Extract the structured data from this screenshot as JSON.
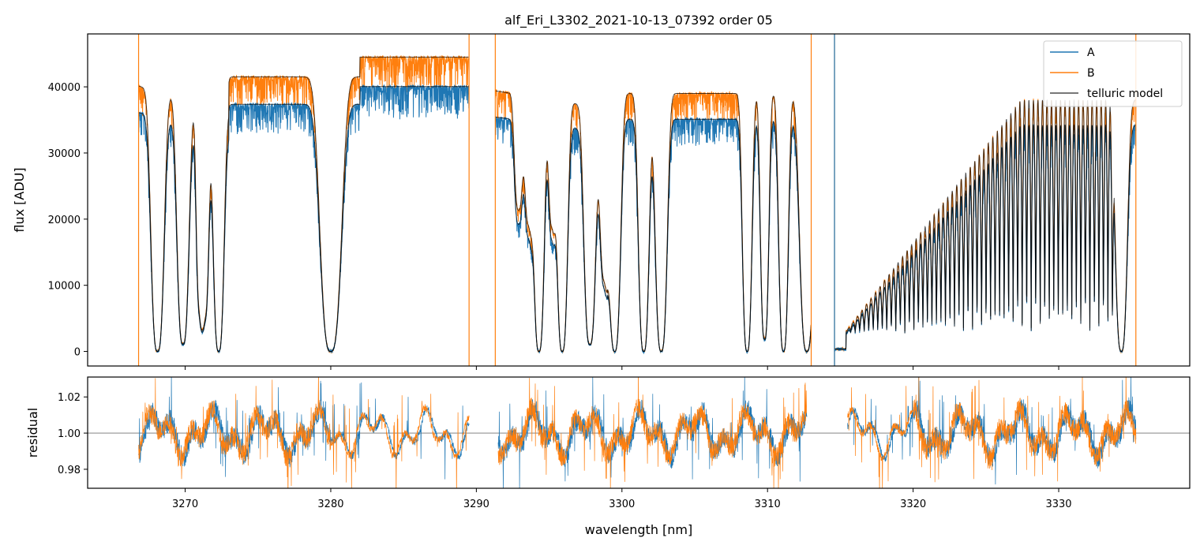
{
  "chart_data": [
    {
      "type": "line",
      "title": "alf_Eri_L3302_2021-10-13_07392  order 05",
      "xlabel": "",
      "ylabel": "flux [ADU]",
      "xlim": [
        3263.3,
        3339.0
      ],
      "ylim": [
        -2200,
        48000
      ],
      "yticks": [
        0,
        10000,
        20000,
        30000,
        40000
      ],
      "xticks": [
        3270,
        3280,
        3290,
        3300,
        3310,
        3320,
        3330
      ],
      "show_xtick_labels": false,
      "legend": "top-right",
      "series": [
        {
          "name": "A",
          "color": "#1f77b4",
          "scale": 0.9
        },
        {
          "name": "B",
          "color": "#ff7f0e",
          "scale": 1.0
        },
        {
          "name": "telluric model",
          "color": "#000000"
        }
      ],
      "segments": [
        [
          3266.8,
          3289.5
        ],
        [
          3291.3,
          3313.0
        ],
        [
          3314.6,
          3335.3
        ]
      ],
      "vlines": [
        3314.6
      ],
      "absorption_bands": [
        {
          "center": 3268.1,
          "width": 0.55,
          "depth": 1.0
        },
        {
          "center": 3269.85,
          "width": 0.5,
          "depth": 0.97
        },
        {
          "center": 3271.0,
          "width": 0.3,
          "depth": 0.8
        },
        {
          "center": 3271.35,
          "width": 0.35,
          "depth": 0.85
        },
        {
          "center": 3272.3,
          "width": 0.45,
          "depth": 1.0
        },
        {
          "center": 3280.0,
          "width": 0.9,
          "depth": 1.0
        },
        {
          "center": 3292.9,
          "width": 0.35,
          "depth": 0.45
        },
        {
          "center": 3293.6,
          "width": 0.35,
          "depth": 0.5
        },
        {
          "center": 3294.3,
          "width": 0.45,
          "depth": 1.0
        },
        {
          "center": 3295.2,
          "width": 0.3,
          "depth": 0.5
        },
        {
          "center": 3295.9,
          "width": 0.45,
          "depth": 1.0
        },
        {
          "center": 3297.8,
          "width": 0.5,
          "depth": 0.97
        },
        {
          "center": 3298.8,
          "width": 0.4,
          "depth": 0.7
        },
        {
          "center": 3299.5,
          "width": 0.5,
          "depth": 1.0
        },
        {
          "center": 3301.5,
          "width": 0.45,
          "depth": 1.0
        },
        {
          "center": 3302.7,
          "width": 0.5,
          "depth": 1.0
        },
        {
          "center": 3308.6,
          "width": 0.4,
          "depth": 1.0
        },
        {
          "center": 3309.8,
          "width": 0.35,
          "depth": 0.95
        },
        {
          "center": 3311.1,
          "width": 0.4,
          "depth": 1.0
        },
        {
          "center": 3312.7,
          "width": 0.6,
          "depth": 1.0
        },
        {
          "center": 3334.3,
          "width": 0.5,
          "depth": 1.0
        }
      ]
    },
    {
      "type": "line",
      "title": "",
      "xlabel": "wavelength [nm]",
      "ylabel": "residual",
      "xlim": [
        3263.3,
        3339.0
      ],
      "ylim": [
        0.9695,
        1.031
      ],
      "yticks": [
        0.98,
        1.0,
        1.02
      ],
      "ytick_labels": [
        "0.98",
        "1.00",
        "1.02"
      ],
      "xticks": [
        3270,
        3280,
        3290,
        3300,
        3310,
        3320,
        3330
      ],
      "xtick_labels": [
        "3270",
        "3280",
        "3290",
        "3300",
        "3310",
        "3320",
        "3330"
      ],
      "reference_line": 1.0,
      "series": [
        {
          "name": "A",
          "color": "#1f77b4"
        },
        {
          "name": "B",
          "color": "#ff7f0e"
        }
      ],
      "segments": [
        [
          3266.8,
          3289.5
        ],
        [
          3291.5,
          3312.7
        ],
        [
          3315.5,
          3335.3
        ]
      ]
    }
  ]
}
